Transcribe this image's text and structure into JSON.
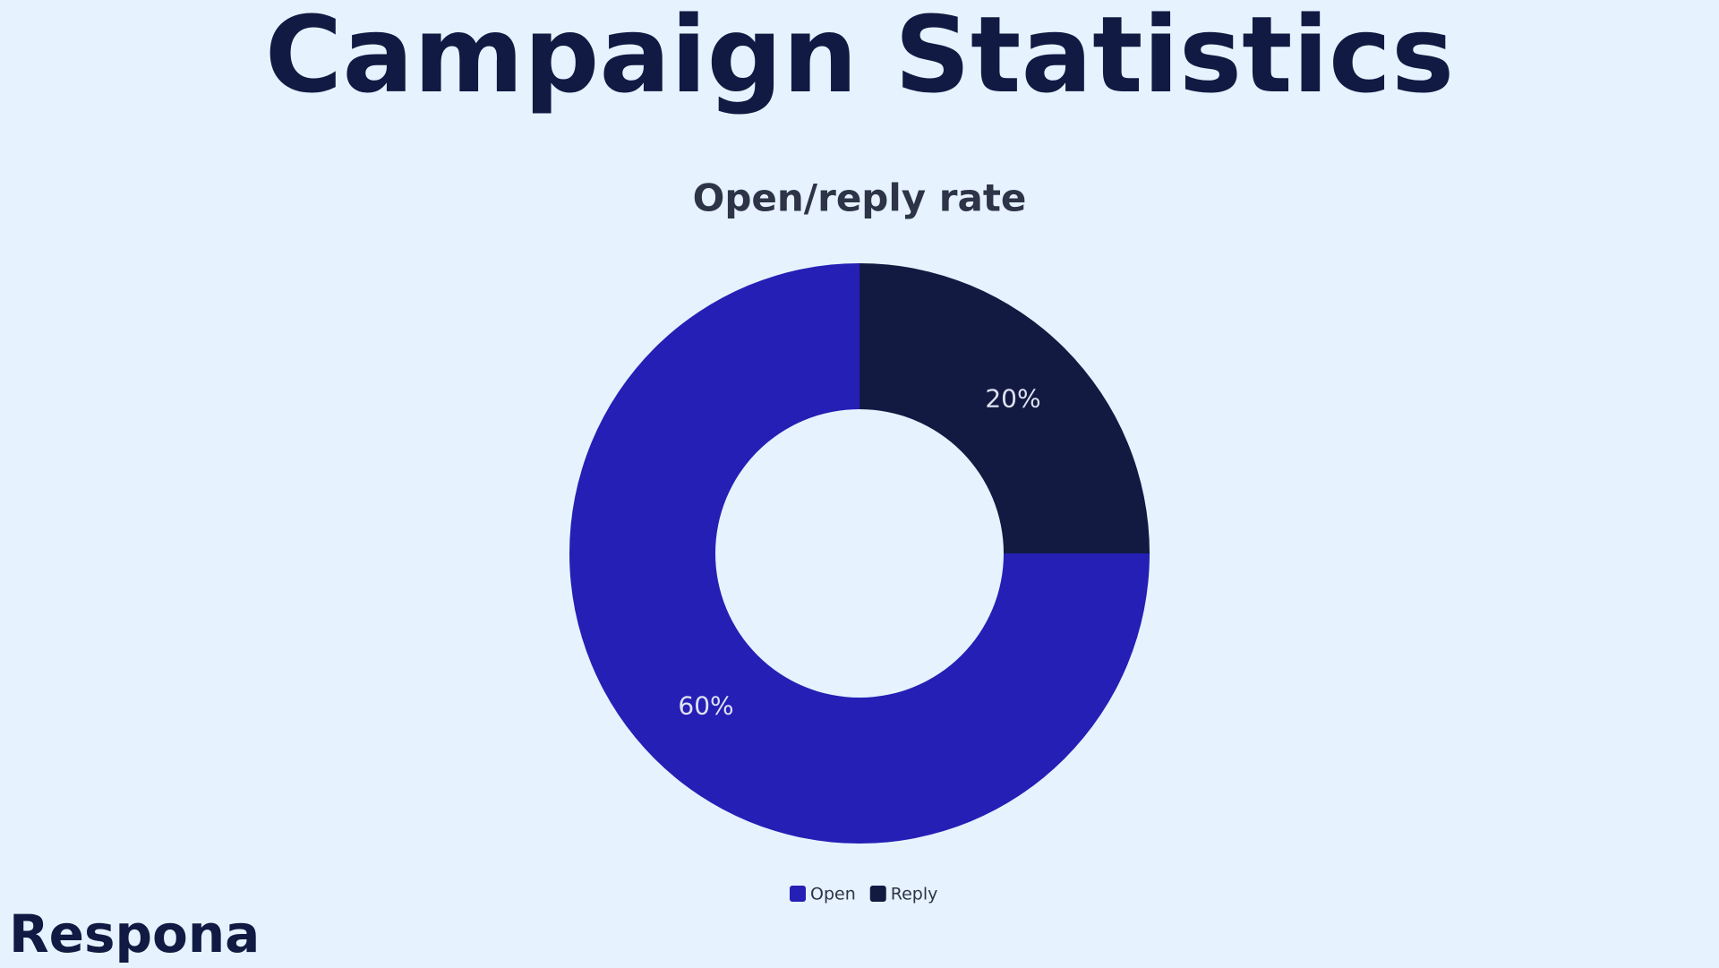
{
  "brand": "Respona",
  "chart_data": {
    "type": "pie",
    "title": "Campaign Statistics",
    "subtitle": "Open/reply rate",
    "categories": [
      "Open",
      "Reply"
    ],
    "values": [
      60,
      20
    ],
    "value_labels": [
      "60%",
      "20%"
    ],
    "colors": [
      "#251fb5",
      "#121a42"
    ],
    "donut": true,
    "legend": "bottom"
  }
}
